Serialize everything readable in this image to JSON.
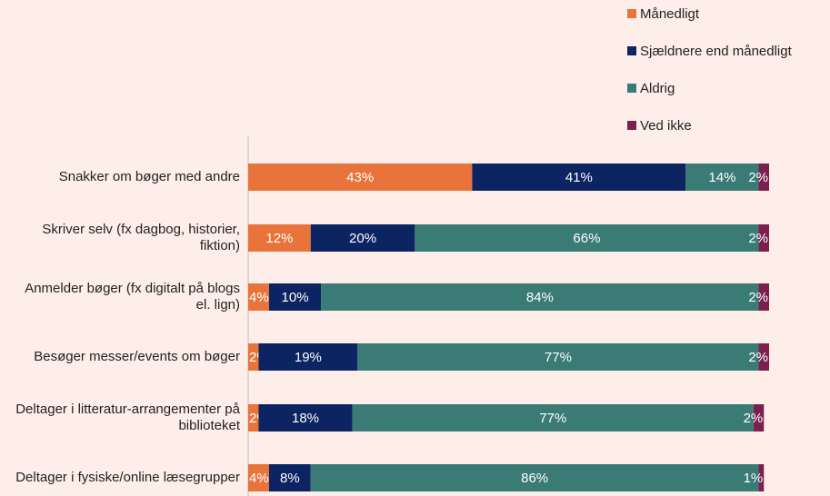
{
  "chart_data": {
    "type": "stacked_barh",
    "categories": [
      "Snakker om bøger med andre",
      "Skriver selv (fx dagbog, historier, fiktion)",
      "Anmelder bøger (fx digitalt på blogs el. lign)",
      "Besøger messer/events om bøger",
      "Deltager i litteratur-arrangementer på biblioteket",
      "Deltager i fysiske/online læsegrupper"
    ],
    "series": [
      {
        "name": "Månedligt",
        "color": "#e8743b",
        "values": [
          43,
          12,
          4,
          2,
          2,
          4
        ],
        "value_labels": [
          "43%",
          "12%",
          "4%",
          "2%",
          "2%",
          "4%"
        ]
      },
      {
        "name": "Sjældnere end månedligt",
        "color": "#0c2461",
        "values": [
          41,
          20,
          10,
          19,
          18,
          8
        ],
        "value_labels": [
          "41%",
          "20%",
          "10%",
          "19%",
          "18%",
          "8%"
        ]
      },
      {
        "name": "Aldrig",
        "color": "#3a7b75",
        "values": [
          14,
          66,
          84,
          77,
          77,
          86
        ],
        "value_labels": [
          "14%",
          "66%",
          "84%",
          "77%",
          "77%",
          "86%"
        ]
      },
      {
        "name": "Ved ikke",
        "color": "#7b1f4e",
        "values": [
          2,
          2,
          2,
          2,
          2,
          1
        ],
        "value_labels": [
          "2%",
          "2%",
          "2%",
          "2%",
          "2%",
          "1%"
        ]
      }
    ],
    "xlim": [
      0,
      100
    ]
  }
}
